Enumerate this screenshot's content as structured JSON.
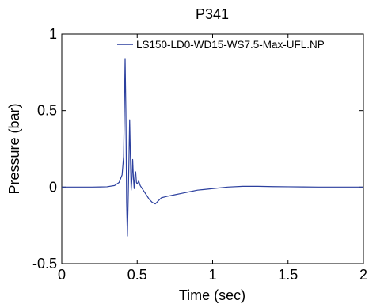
{
  "chart_data": {
    "type": "line",
    "title": "P341",
    "xlabel": "Time (sec)",
    "ylabel": "Pressure (bar)",
    "xlim": [
      0,
      2
    ],
    "ylim": [
      -0.5,
      1
    ],
    "x_ticks": [
      "0",
      "0.5",
      "1",
      "1.5",
      "2"
    ],
    "y_ticks": [
      "-0.5",
      "0",
      "0.5",
      "1"
    ],
    "grid": false,
    "legend_position": "top-right",
    "series": [
      {
        "name": "LS150-LD0-WD15-WS7.5-Max-UFL.NP",
        "color": "#2b3f9e",
        "x": [
          0,
          0.2,
          0.3,
          0.35,
          0.38,
          0.4,
          0.41,
          0.415,
          0.42,
          0.425,
          0.43,
          0.435,
          0.44,
          0.445,
          0.45,
          0.455,
          0.46,
          0.465,
          0.47,
          0.475,
          0.48,
          0.485,
          0.49,
          0.495,
          0.5,
          0.51,
          0.52,
          0.54,
          0.56,
          0.58,
          0.6,
          0.62,
          0.64,
          0.66,
          0.7,
          0.75,
          0.8,
          0.85,
          0.9,
          0.95,
          1.0,
          1.1,
          1.2,
          1.3,
          1.4,
          1.5,
          1.6,
          1.7,
          1.8,
          1.9,
          2.0
        ],
        "y": [
          0,
          0,
          0.002,
          0.01,
          0.03,
          0.08,
          0.2,
          0.5,
          0.84,
          0.5,
          -0.1,
          -0.32,
          -0.1,
          0.15,
          0.44,
          0.2,
          -0.02,
          0.05,
          0.18,
          0.06,
          -0.01,
          0.08,
          0.1,
          0.03,
          0.02,
          0.04,
          0.01,
          -0.02,
          -0.05,
          -0.08,
          -0.1,
          -0.11,
          -0.09,
          -0.07,
          -0.06,
          -0.05,
          -0.04,
          -0.03,
          -0.02,
          -0.015,
          -0.01,
          0,
          0.005,
          0.005,
          0.003,
          0.002,
          0.001,
          0,
          0,
          0,
          0
        ]
      }
    ]
  }
}
